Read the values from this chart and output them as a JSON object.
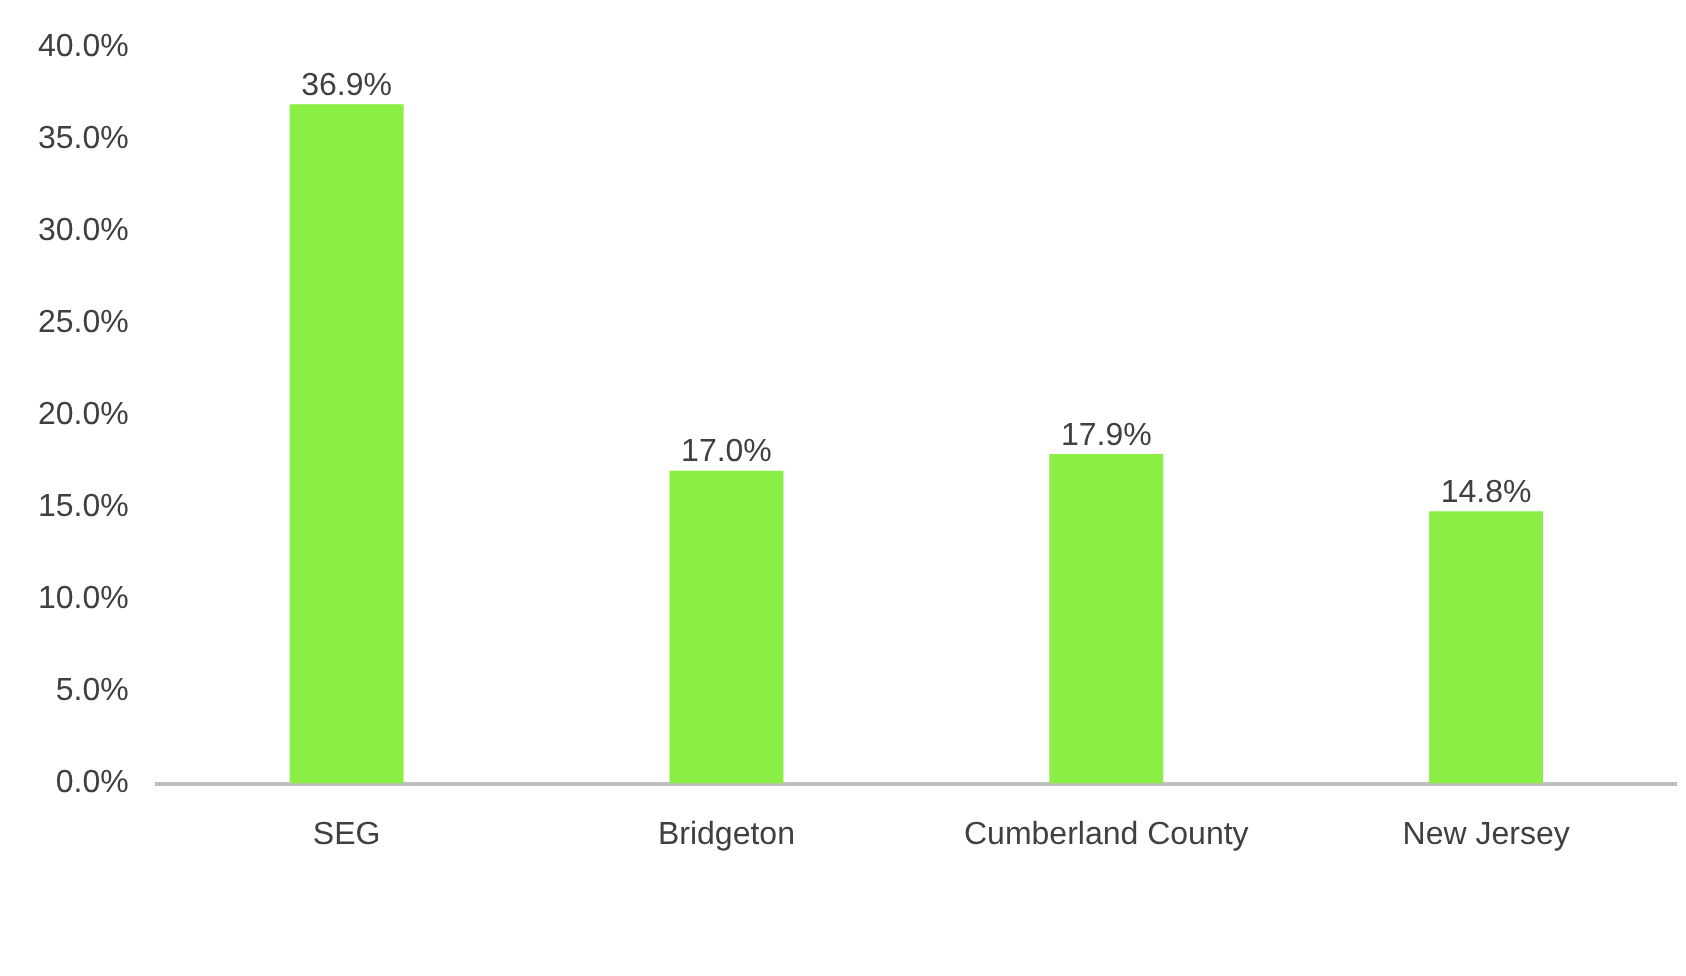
{
  "chart_data": {
    "type": "bar",
    "categories": [
      "SEG",
      "Bridgeton",
      "Cumberland County",
      "New Jersey"
    ],
    "values": [
      36.9,
      17.0,
      17.9,
      14.8
    ],
    "color": "#8aee44",
    "value_labels": [
      "36.9%",
      "17.0%",
      "17.9%",
      "14.8%"
    ],
    "ylim": [
      0,
      40
    ],
    "yticks": [
      {
        "value": 0,
        "label": "0.0%"
      },
      {
        "value": 5,
        "label": "5.0%"
      },
      {
        "value": 10,
        "label": "10.0%"
      },
      {
        "value": 15,
        "label": "15.0%"
      },
      {
        "value": 20,
        "label": "20.0%"
      },
      {
        "value": 25,
        "label": "25.0%"
      },
      {
        "value": 30,
        "label": "30.0%"
      },
      {
        "value": 35,
        "label": "35.0%"
      },
      {
        "value": 40,
        "label": "40.0%"
      }
    ],
    "grid": false,
    "legend": false
  }
}
